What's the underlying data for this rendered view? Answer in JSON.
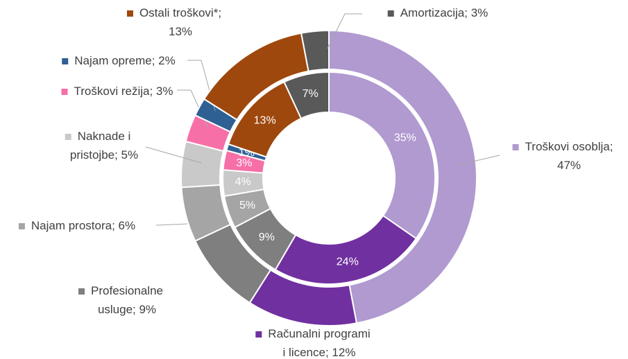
{
  "chart_data": {
    "type": "donut",
    "colors": [
      "#b09ad0",
      "#7030a0",
      "#7f7f7f",
      "#a5a5a5",
      "#c9c9c9",
      "#f76fa7",
      "#2e6094",
      "#9e480e",
      "#595959"
    ],
    "series": [
      {
        "values": [
          47,
          12,
          9,
          6,
          5,
          3,
          2,
          13,
          3
        ],
        "value_labels": [
          "Troškovi osoblja;\n47%",
          "Računalni programi\ni licence; 12%",
          "Profesionalne\nusluge; 9%",
          "Najam prostora; 6%",
          "Naknade i\npristojbe; 5%",
          "Troškovi režija; 3%",
          "Najam opreme; 2%",
          "Ostali troškovi*;\n13%",
          "Amortizacija; 3%"
        ]
      },
      {
        "values": [
          35,
          24,
          9,
          5,
          4,
          3,
          1,
          13,
          7
        ],
        "value_labels": [
          "35%",
          "24%",
          "9%",
          "5%",
          "4%",
          "3%",
          "1%",
          "13%",
          "7%"
        ]
      }
    ]
  }
}
